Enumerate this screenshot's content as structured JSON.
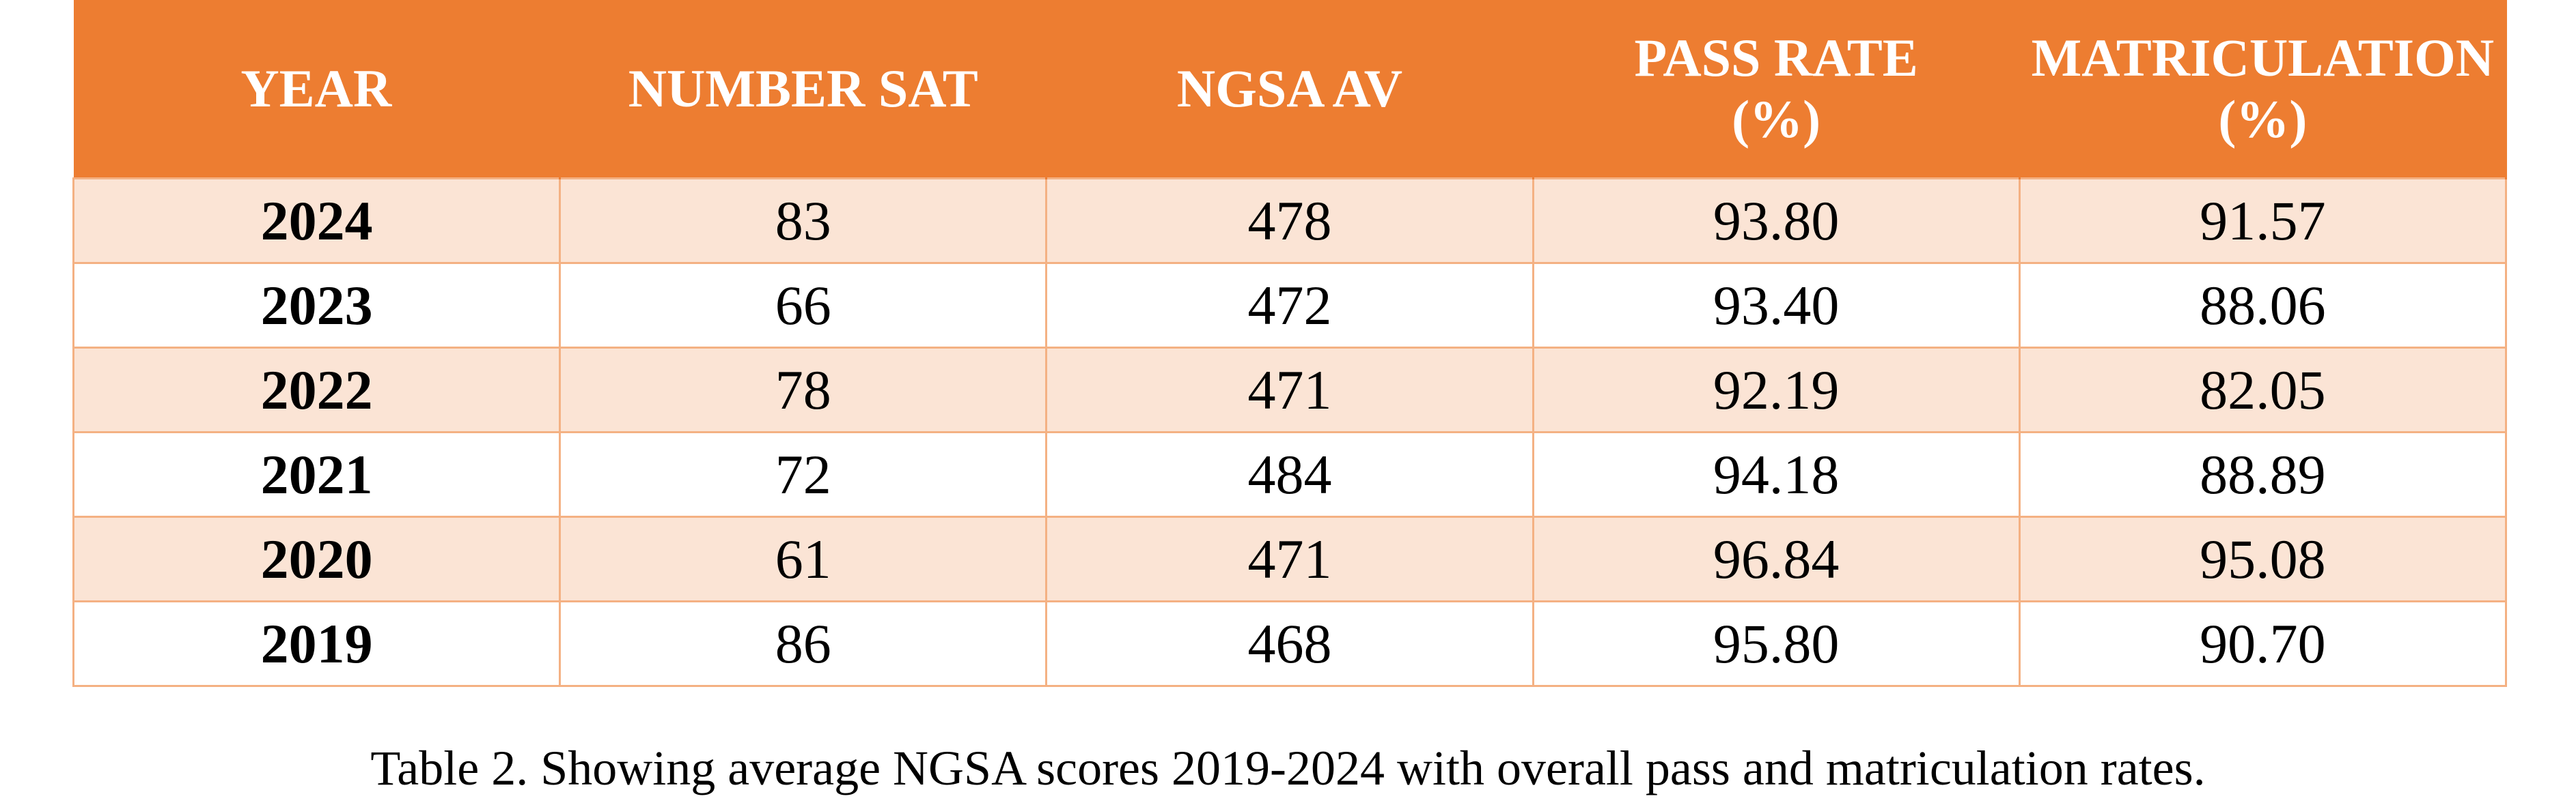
{
  "table": {
    "header": [
      "YEAR",
      "NUMBER SAT",
      "NGSA AV",
      "PASS RATE\n(%)",
      "MATRICULATION\n(%)"
    ],
    "rows": [
      [
        "2024",
        "83",
        "478",
        "93.80",
        "91.57"
      ],
      [
        "2023",
        "66",
        "472",
        "93.40",
        "88.06"
      ],
      [
        "2022",
        "78",
        "471",
        "92.19",
        "82.05"
      ],
      [
        "2021",
        "72",
        "484",
        "94.18",
        "88.89"
      ],
      [
        "2020",
        "61",
        "471",
        "96.84",
        "95.08"
      ],
      [
        "2019",
        "86",
        "468",
        "95.80",
        "90.70"
      ]
    ]
  },
  "caption": "Table 2. Showing average NGSA scores 2019-2024 with overall pass and matriculation rates."
}
